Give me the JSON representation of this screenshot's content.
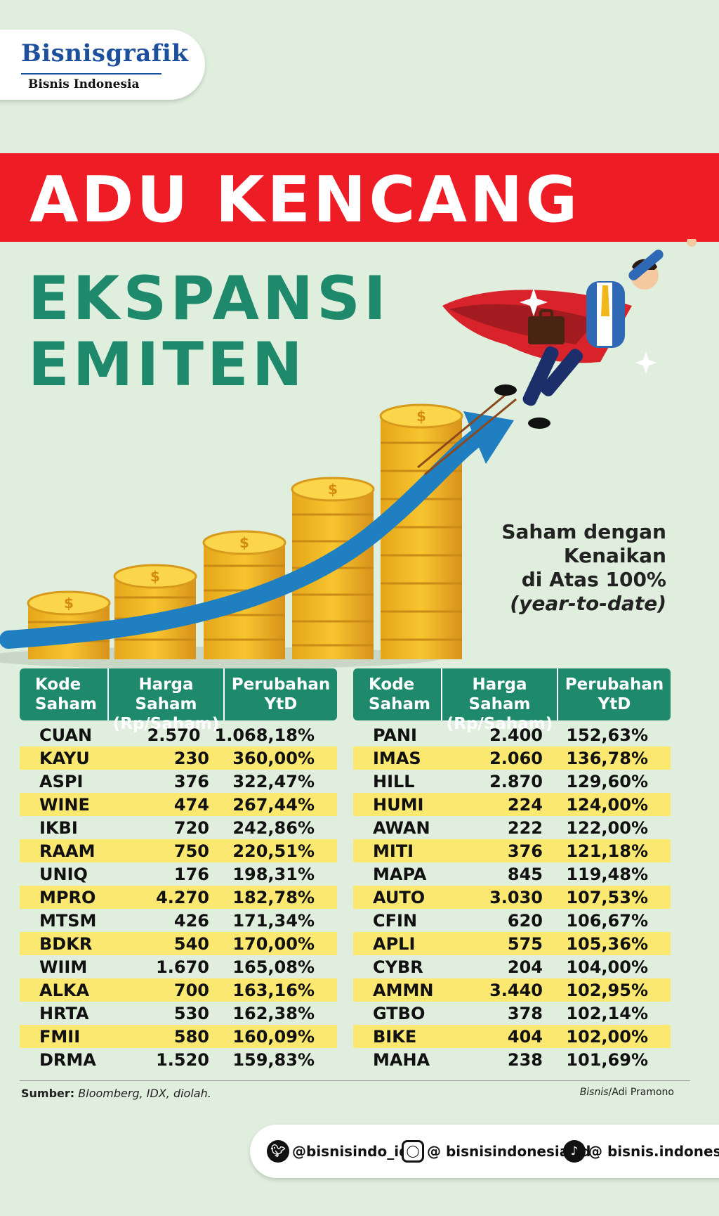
{
  "brand": {
    "title": "Bisnisgrafik",
    "subtitle": "Bisnis Indonesia"
  },
  "headline": "ADU KENCANG",
  "subheadline": {
    "line1": "EKSPANSI",
    "line2": "EMITEN"
  },
  "caption": {
    "line1": "Saham dengan",
    "line2": "Kenaikan",
    "line3": "di Atas 100%",
    "line4": "(year-to-date)"
  },
  "table": {
    "headers": {
      "code1": "Kode",
      "code2": "Saham",
      "price1": "Harga Saham",
      "price2": "(Rp/Saham)",
      "change1": "Perubahan",
      "change2": "YtD"
    },
    "left_rows": [
      {
        "code": "CUAN",
        "price": "2.570",
        "change": "1.068,18%"
      },
      {
        "code": "KAYU",
        "price": "230",
        "change": "360,00%"
      },
      {
        "code": "ASPI",
        "price": "376",
        "change": "322,47%"
      },
      {
        "code": "WINE",
        "price": "474",
        "change": "267,44%"
      },
      {
        "code": "IKBI",
        "price": "720",
        "change": "242,86%"
      },
      {
        "code": "RAAM",
        "price": "750",
        "change": "220,51%"
      },
      {
        "code": "UNIQ",
        "price": "176",
        "change": "198,31%"
      },
      {
        "code": "MPRO",
        "price": "4.270",
        "change": "182,78%"
      },
      {
        "code": "MTSM",
        "price": "426",
        "change": "171,34%"
      },
      {
        "code": "BDKR",
        "price": "540",
        "change": "170,00%"
      },
      {
        "code": "WIIM",
        "price": "1.670",
        "change": "165,08%"
      },
      {
        "code": "ALKA",
        "price": "700",
        "change": "163,16%"
      },
      {
        "code": "HRTA",
        "price": "530",
        "change": "162,38%"
      },
      {
        "code": "FMII",
        "price": "580",
        "change": "160,09%"
      },
      {
        "code": "DRMA",
        "price": "1.520",
        "change": "159,83%"
      }
    ],
    "right_rows": [
      {
        "code": "PANI",
        "price": "2.400",
        "change": "152,63%"
      },
      {
        "code": "IMAS",
        "price": "2.060",
        "change": "136,78%"
      },
      {
        "code": "HILL",
        "price": "2.870",
        "change": "129,60%"
      },
      {
        "code": "HUMI",
        "price": "224",
        "change": "124,00%"
      },
      {
        "code": "AWAN",
        "price": "222",
        "change": "122,00%"
      },
      {
        "code": "MITI",
        "price": "376",
        "change": "121,18%"
      },
      {
        "code": "MAPA",
        "price": "845",
        "change": "119,48%"
      },
      {
        "code": "AUTO",
        "price": "3.030",
        "change": "107,53%"
      },
      {
        "code": "CFIN",
        "price": "620",
        "change": "106,67%"
      },
      {
        "code": "APLI",
        "price": "575",
        "change": "105,36%"
      },
      {
        "code": "CYBR",
        "price": "204",
        "change": "104,00%"
      },
      {
        "code": "AMMN",
        "price": "3.440",
        "change": "102,95%"
      },
      {
        "code": "GTBO",
        "price": "378",
        "change": "102,14%"
      },
      {
        "code": "BIKE",
        "price": "404",
        "change": "102,00%"
      },
      {
        "code": "MAHA",
        "price": "238",
        "change": "101,69%"
      }
    ]
  },
  "source": {
    "label": "Sumber:",
    "text": "Bloomberg, IDX, diolah."
  },
  "credit": {
    "org": "Bisnis",
    "author": "/Adi Pramono"
  },
  "social": {
    "twitter": "@bisnisindo_id",
    "instagram": "@ bisnisindonesia_id",
    "tiktok": "@ bisnis.indonesia"
  },
  "colors": {
    "background": "#dfeedd",
    "banner_red": "#ee1c25",
    "green": "#1f8a6b",
    "row_highlight": "#fbe870",
    "brand_blue": "#1c4f9c"
  }
}
